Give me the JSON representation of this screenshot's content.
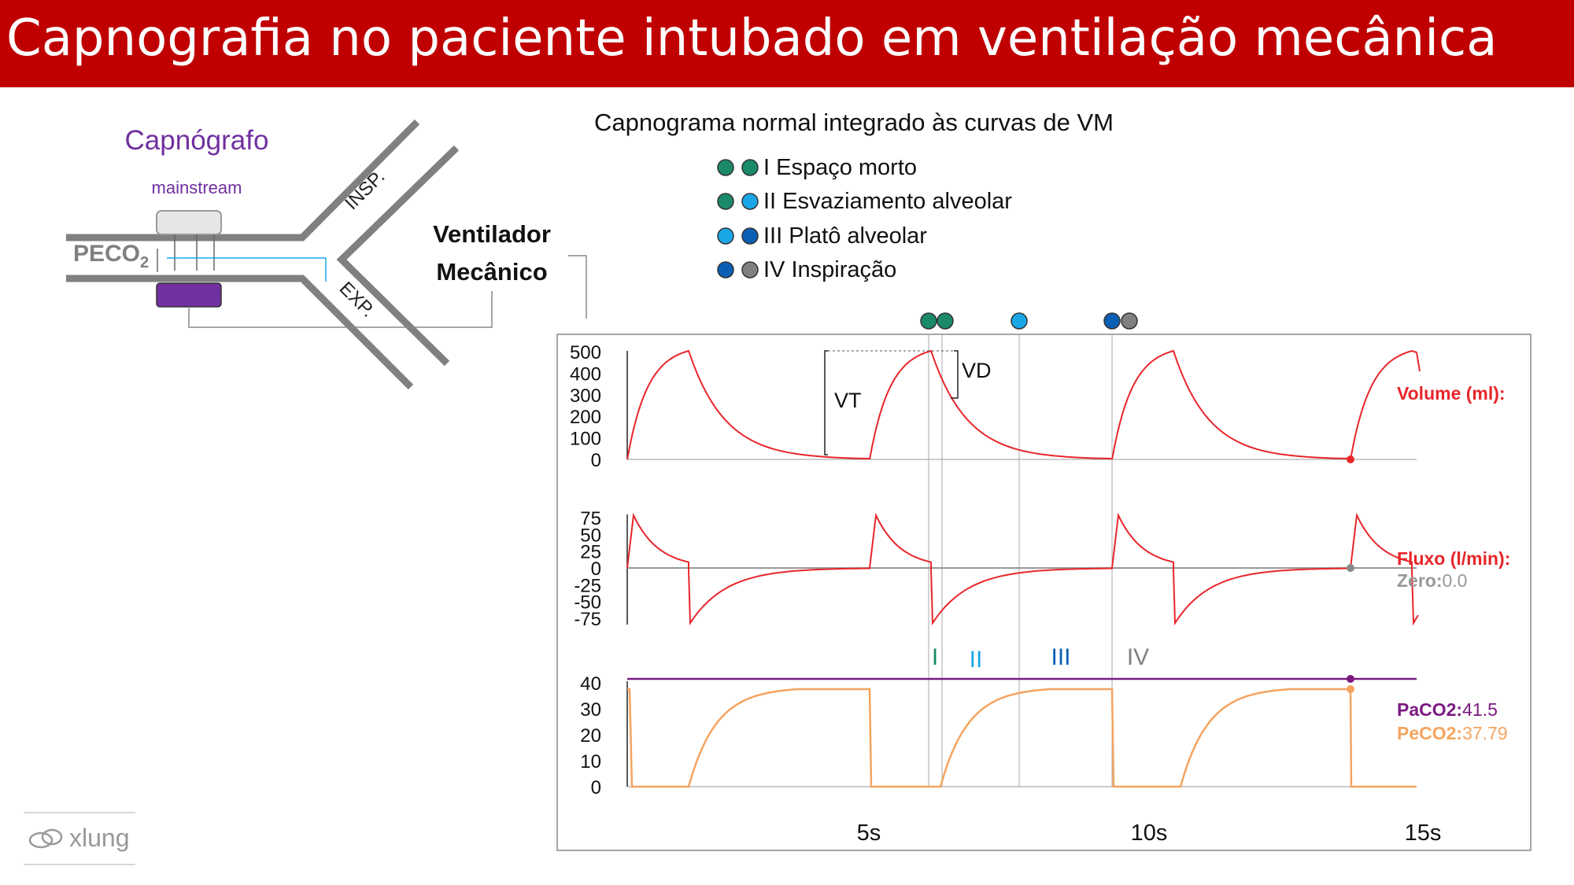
{
  "header": {
    "title": "Capnografia no paciente intubado em ventilação mecânica"
  },
  "device": {
    "capnograph_label": "Capnógrafo",
    "mainstream_label": "mainstream",
    "peco2_label": "PECO",
    "peco2_sub": "2",
    "insp_label": "INSP.",
    "exp_label": "EXP.",
    "ventilator_line1": "Ventilador",
    "ventilator_line2": "Mecânico"
  },
  "capnogram": {
    "title": "Capnograma normal integrado às curvas de VM",
    "legend": [
      {
        "numeral": "I",
        "text": "Espaço morto",
        "colors": [
          "#1a8a6a",
          "#1a8a6a"
        ]
      },
      {
        "numeral": "II",
        "text": "Esvaziamento alveolar",
        "colors": [
          "#1a8a6a",
          "#1aa7e8"
        ]
      },
      {
        "numeral": "III",
        "text": "Platô alveolar",
        "colors": [
          "#1aa7e8",
          "#0a5fb4"
        ]
      },
      {
        "numeral": "IV",
        "text": "Inspiração",
        "colors": [
          "#0a5fb4",
          "#808080"
        ]
      }
    ],
    "phase_labels": [
      "I",
      "II",
      "III",
      "IV"
    ]
  },
  "colors": {
    "banner": "#c00000",
    "purple": "#7030a0",
    "red": "#e8262b",
    "orange": "#f4a460",
    "dark_purple": "#7a1a80",
    "teal": "#1a8a6a",
    "cyan": "#1aa7e8",
    "blue": "#0a5fb4",
    "gray": "#808080"
  },
  "chart_data": [
    {
      "type": "line",
      "series": [
        {
          "name": "Volume (ml):",
          "color": "#e8262b"
        }
      ],
      "yticks": [
        "500",
        "400",
        "300",
        "200",
        "100",
        "0"
      ],
      "ylim": [
        0,
        500
      ],
      "annotations": [
        "VT",
        "VD"
      ]
    },
    {
      "type": "line",
      "series": [
        {
          "name": "Fluxo (l/min):",
          "color": "#e8262b"
        },
        {
          "name": "Zero:",
          "value": "0.0",
          "color": "#999999"
        }
      ],
      "yticks": [
        "75",
        "50",
        "25",
        "0",
        "-25",
        "-50",
        "-75"
      ],
      "ylim": [
        -75,
        75
      ]
    },
    {
      "type": "line",
      "series": [
        {
          "name": "PaCO2:",
          "value": "41.5",
          "color": "#7a1a80"
        },
        {
          "name": "PeCO2:",
          "value": "37.79",
          "color": "#f4a460"
        }
      ],
      "yticks": [
        "40",
        "30",
        "20",
        "10",
        "0"
      ],
      "ylim": [
        0,
        40
      ],
      "xticks": [
        "5s",
        "10s",
        "15s"
      ]
    }
  ],
  "footer": {
    "logo_text": "xlung"
  }
}
